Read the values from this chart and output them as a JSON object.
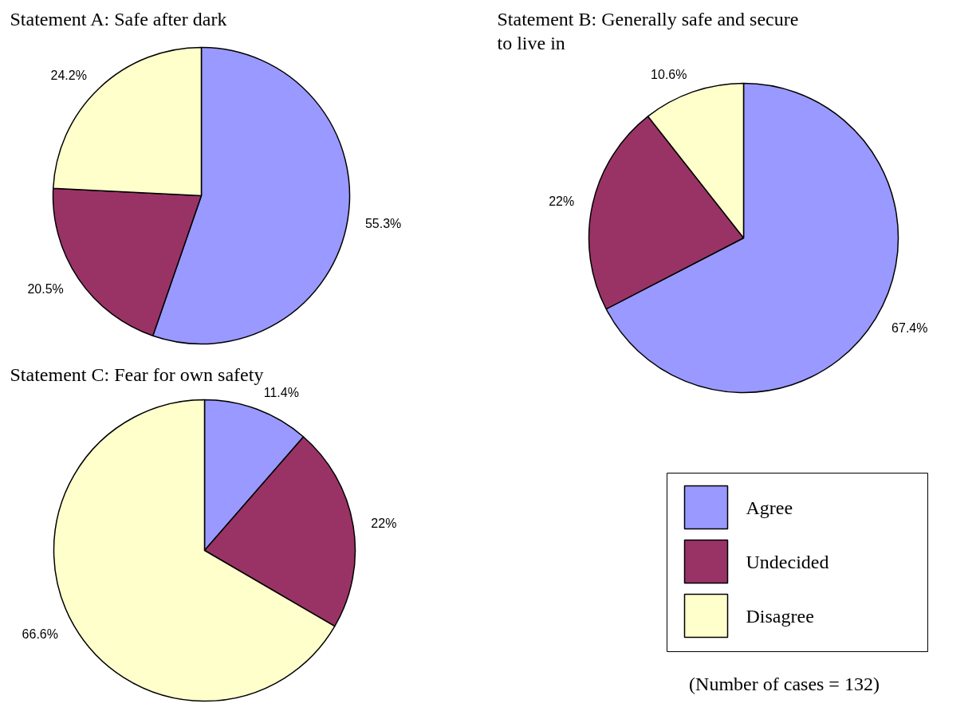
{
  "chart_data": [
    {
      "type": "pie",
      "title": "Statement A: Safe after dark",
      "categories": [
        null,
        null,
        null
      ],
      "values": [
        55.3,
        20.5,
        24.2
      ],
      "colors": [
        "#9999ff",
        "#993366",
        "#ffffcc"
      ],
      "value_labels": [
        "55.3%",
        "20.5%",
        "24.2%"
      ]
    },
    {
      "type": "pie",
      "title": "Statement B: Generally safe and secure to live in",
      "categories": [
        "Agree",
        "Undecided",
        "Disagree"
      ],
      "values": [
        67.4,
        22,
        10.6
      ],
      "colors": [
        "#9999ff",
        "#993366",
        "#ffffcc"
      ],
      "value_labels": [
        "67.4%",
        "22%",
        "10.6%"
      ],
      "legend": "bottom",
      "annotations": [
        "(Number of cases = 132)"
      ]
    },
    {
      "type": "pie",
      "title": "Statement C: Fear for own safety",
      "categories": [
        null,
        null,
        null
      ],
      "values": [
        11.4,
        22,
        66.6
      ],
      "colors": [
        "#9999ff",
        "#993366",
        "#ffffcc"
      ],
      "value_labels": [
        "11.4%",
        "22%",
        "66.6%"
      ]
    }
  ]
}
